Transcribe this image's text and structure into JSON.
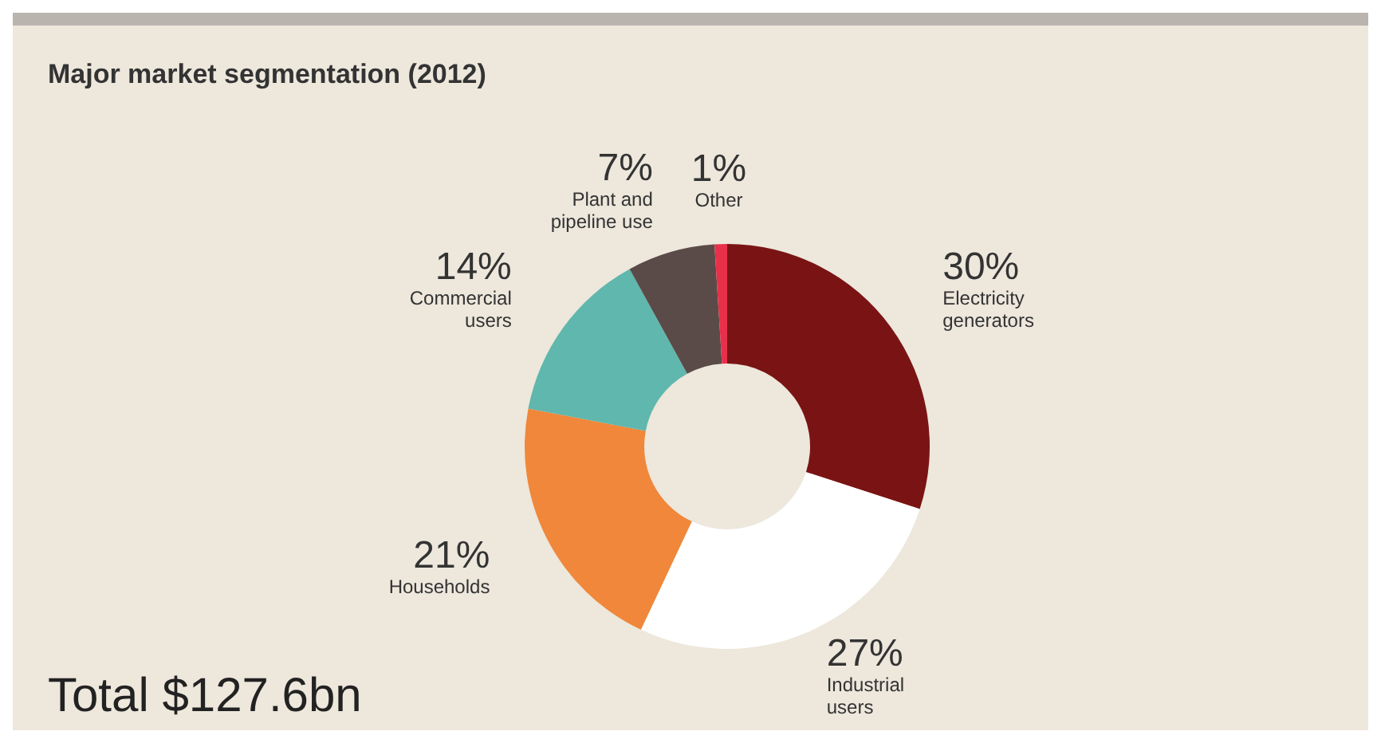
{
  "chart_data": {
    "type": "donut",
    "title": "Major market segmentation (2012)",
    "categories": [
      "Electricity generators",
      "Industrial users",
      "Households",
      "Commercial users",
      "Plant and pipeline use",
      "Other"
    ],
    "values": [
      30,
      27,
      21,
      14,
      7,
      1
    ],
    "value_labels": [
      "30%",
      "27%",
      "21%",
      "14%",
      "7%",
      "1%"
    ],
    "colors": [
      "#7a1414",
      "#ffffff",
      "#f0873a",
      "#5fb7ad",
      "#5a4b48",
      "#e8304a"
    ],
    "annotations": [
      "Total $127.6bn"
    ]
  }
}
